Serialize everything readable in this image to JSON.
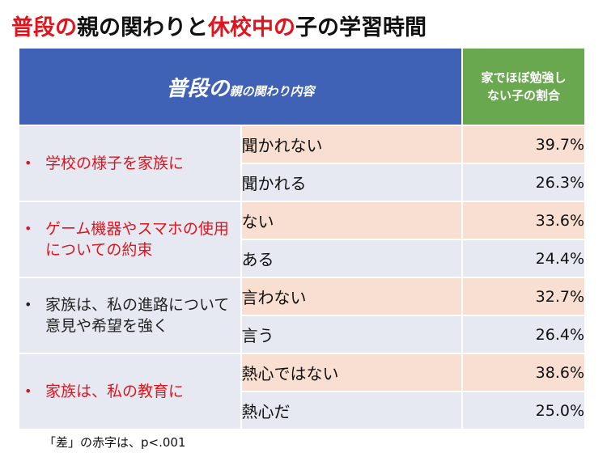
{
  "title": {
    "part1": "普段の",
    "part2": "親の関わりと",
    "part3": "休校中の",
    "part4": "子の学習時間"
  },
  "header": {
    "main_big": "普段の",
    "main_small": "親の関わり内容",
    "pct_line1": "家でほぼ勉強し",
    "pct_line2": "ない子の割合"
  },
  "chart_data": {
    "type": "table",
    "columns": [
      "普段の親の関わり内容",
      "家でほぼ勉強しない子の割合"
    ],
    "groups": [
      {
        "label": "学校の様子を家族に",
        "highlight": true,
        "rows": [
          {
            "response": "聞かれない",
            "value": "39.7%"
          },
          {
            "response": "聞かれる",
            "value": "26.3%"
          }
        ]
      },
      {
        "label": "ゲーム機器やスマホの使用についての約束",
        "highlight": true,
        "rows": [
          {
            "response": "ない",
            "value": "33.6%"
          },
          {
            "response": "ある",
            "value": "24.4%"
          }
        ]
      },
      {
        "label": "家族は、私の進路について意見や希望を強く",
        "highlight": false,
        "rows": [
          {
            "response": "言わない",
            "value": "32.7%"
          },
          {
            "response": "言う",
            "value": "26.4%"
          }
        ]
      },
      {
        "label": "家族は、私の教育に",
        "highlight": true,
        "rows": [
          {
            "response": "熱心ではない",
            "value": "38.6%"
          },
          {
            "response": "熱心だ",
            "value": "25.0%"
          }
        ]
      }
    ]
  },
  "bullet": "•",
  "note": "「差」の赤字は、p<.001",
  "colors": {
    "header_blue": "#3f62b6",
    "header_green": "#6aa84f",
    "highlight_red": "#e0141e",
    "row_peach": "#f9dfd2",
    "row_lavender": "#e6e9f2"
  }
}
